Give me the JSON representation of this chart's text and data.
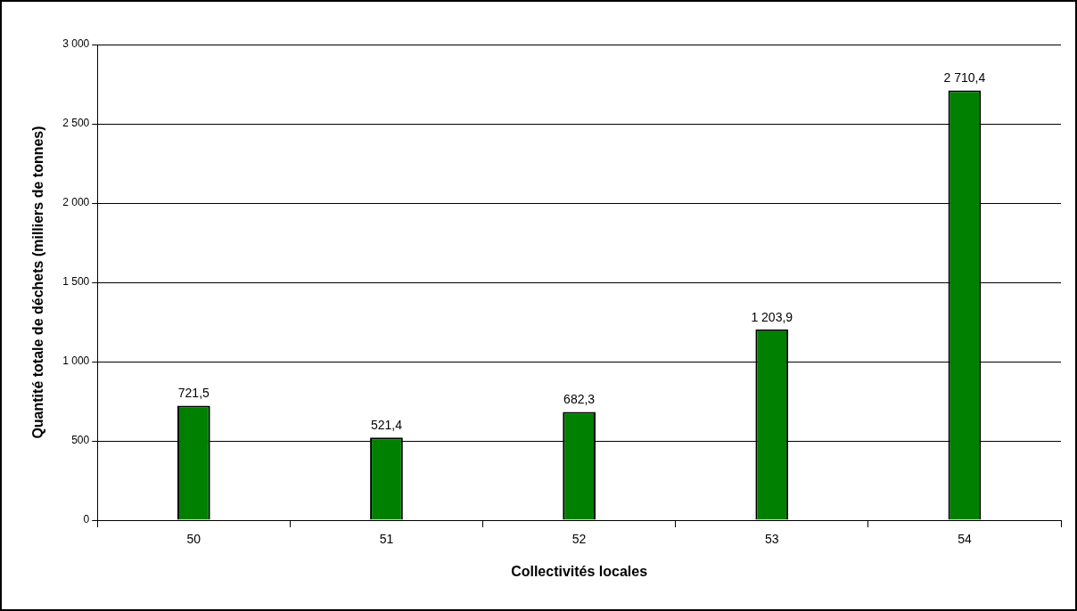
{
  "chart_data": {
    "type": "bar",
    "xlabel": "Collectivités locales",
    "ylabel": "Quantité totale de déchets (milliers de tonnes)",
    "categories": [
      "50",
      "51",
      "52",
      "53",
      "54"
    ],
    "values": [
      721.5,
      521.4,
      682.3,
      1203.9,
      2710.4
    ],
    "value_labels": [
      "721,5",
      "521,4",
      "682,3",
      "1 203,9",
      "2 710,4"
    ],
    "color": "#008000",
    "ylim": [
      0,
      3000
    ],
    "yticks": [
      0,
      500,
      {
        "value": 1000,
        "label": "1 000"
      },
      {
        "value": 1500,
        "label": "1 500"
      },
      {
        "value": 2000,
        "label": "2 000"
      },
      {
        "value": 2500,
        "label": "2 500"
      },
      {
        "value": 3000,
        "label": "3 000"
      }
    ],
    "grid": "y",
    "legend": false
  }
}
